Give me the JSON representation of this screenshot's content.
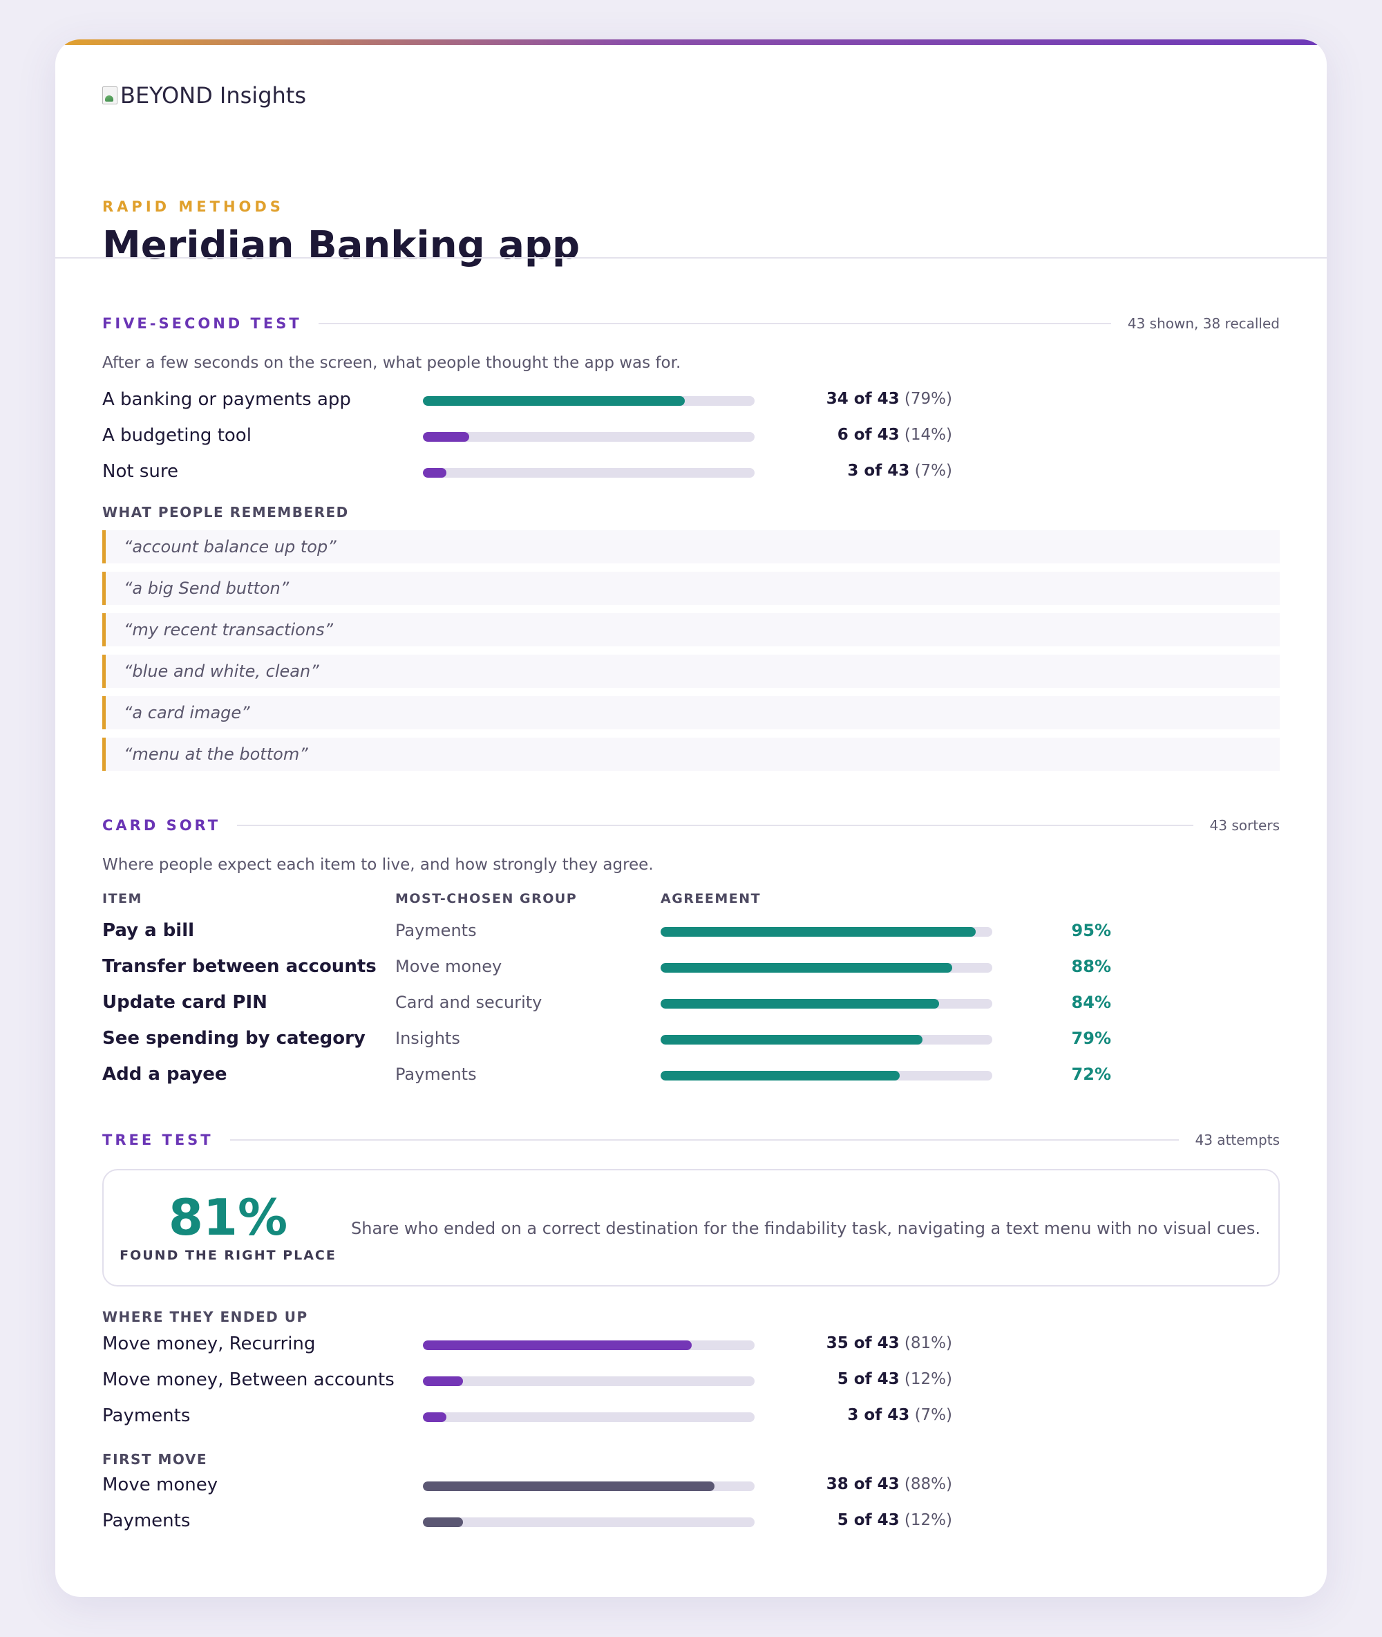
{
  "brand": {
    "logo_text": "BEYOND Insights"
  },
  "header": {
    "eyebrow": "RAPID METHODS",
    "title": "Meridian Banking app"
  },
  "five_second": {
    "title": "FIVE-SECOND TEST",
    "meta": "43 shown, 38 recalled",
    "description": "After a few seconds on the screen, what people thought the app was for.",
    "bars": [
      {
        "label": "A banking or payments app",
        "count": "34 of 43",
        "pct": "(79%)",
        "fraction": 0.79
      },
      {
        "label": "A budgeting tool",
        "count": "6 of 43",
        "pct": "(14%)",
        "fraction": 0.14
      },
      {
        "label": "Not sure",
        "count": "3 of 43",
        "pct": "(7%)",
        "fraction": 0.07
      }
    ],
    "remembered_label": "WHAT PEOPLE REMEMBERED",
    "quotes": [
      "“account balance up top”",
      "“a big Send button”",
      "“my recent transactions”",
      "“blue and white, clean”",
      "“a card image”",
      "“menu at the bottom”"
    ]
  },
  "card_sort": {
    "title": "CARD SORT",
    "meta": "43 sorters",
    "description": "Where people expect each item to live, and how strongly they agree.",
    "headers": {
      "item": "ITEM",
      "group": "MOST-CHOSEN GROUP",
      "agreement": "AGREEMENT"
    },
    "rows": [
      {
        "item": "Pay a bill",
        "group": "Payments",
        "pct": "95%",
        "fraction": 0.95
      },
      {
        "item": "Transfer between accounts",
        "group": "Move money",
        "pct": "88%",
        "fraction": 0.88
      },
      {
        "item": "Update card PIN",
        "group": "Card and security",
        "pct": "84%",
        "fraction": 0.84
      },
      {
        "item": "See spending by category",
        "group": "Insights",
        "pct": "79%",
        "fraction": 0.79
      },
      {
        "item": "Add a payee",
        "group": "Payments",
        "pct": "72%",
        "fraction": 0.72
      }
    ]
  },
  "tree_test": {
    "title": "TREE TEST",
    "meta": "43 attempts",
    "stat_value": "81%",
    "stat_caption": "FOUND THE RIGHT PLACE",
    "stat_text": "Share who ended on a correct destination for the findability task, navigating a text menu with no visual cues.",
    "ended_label": "WHERE THEY ENDED UP",
    "ended": [
      {
        "label": "Move money, Recurring",
        "count": "35 of 43",
        "pct": "(81%)",
        "fraction": 0.81
      },
      {
        "label": "Move money, Between accounts",
        "count": "5 of 43",
        "pct": "(12%)",
        "fraction": 0.12
      },
      {
        "label": "Payments",
        "count": "3 of 43",
        "pct": "(7%)",
        "fraction": 0.07
      }
    ],
    "first_label": "FIRST MOVE",
    "first": [
      {
        "label": "Move money",
        "count": "38 of 43",
        "pct": "(88%)",
        "fraction": 0.88
      },
      {
        "label": "Payments",
        "count": "5 of 43",
        "pct": "(12%)",
        "fraction": 0.12
      }
    ]
  },
  "colors": {
    "teal": "#148a7d",
    "purple": "#7436b6",
    "slate": "#5b5773",
    "gold": "#e0a02c"
  }
}
